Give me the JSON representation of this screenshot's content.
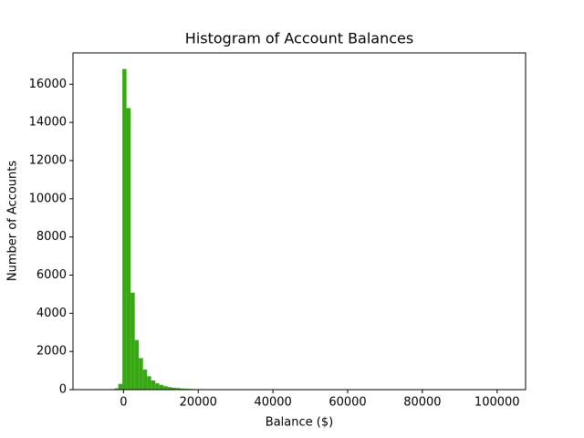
{
  "chart_data": {
    "type": "histogram",
    "title": "Histogram of Account Balances",
    "x_label": "Balance ($)",
    "y_label": "Number of Accounts",
    "color": "#38a714",
    "bins": [
      -8019,
      -6918,
      -5816,
      -4715,
      -3613,
      -2512,
      -1410,
      -309,
      793,
      1894,
      2996,
      4097,
      5199,
      6300,
      7401,
      8503,
      9604,
      10706,
      11807,
      12909,
      14010,
      15112,
      16213,
      17315,
      18416,
      19518,
      20619,
      21720,
      22822,
      23923,
      25025,
      26126,
      27228,
      28329,
      29431,
      30532,
      31634,
      32735,
      33837,
      34938,
      36039,
      37141,
      38242,
      39344,
      40445,
      41547,
      42648,
      43750,
      44851,
      45953,
      47054,
      48156,
      49257,
      50359,
      51460,
      52561,
      53663,
      54764,
      55866,
      56967,
      58069,
      59170,
      60272,
      61373,
      62475,
      63576,
      64678,
      65779,
      66880,
      67982,
      69083,
      70185,
      71286,
      72388,
      73489,
      74591,
      75692,
      76794,
      77895,
      78997,
      80098,
      81199,
      82301,
      83402,
      84504,
      85605,
      86707,
      87808,
      88910,
      90011,
      91113,
      92214,
      93316,
      94417,
      95519,
      96620,
      97722,
      98823,
      99924,
      101026,
      102127
    ],
    "counts": [
      1,
      2,
      5,
      15,
      20,
      60,
      300,
      16800,
      14750,
      5080,
      2600,
      1650,
      1050,
      700,
      480,
      330,
      250,
      180,
      130,
      100,
      80,
      60,
      50,
      40,
      30,
      25,
      20,
      18,
      15,
      12,
      10,
      8,
      7,
      6,
      5,
      5,
      4,
      4,
      3,
      3,
      3,
      2,
      2,
      2,
      2,
      1,
      1,
      1,
      1,
      1,
      1,
      1,
      1,
      1,
      1,
      1,
      1,
      1,
      1,
      1,
      1,
      1,
      1,
      1,
      1,
      1,
      1,
      1,
      1,
      1,
      1,
      1,
      1,
      1,
      1,
      1,
      1,
      1,
      1,
      1,
      1,
      1,
      1,
      1,
      1,
      1,
      1,
      1,
      1,
      1,
      1,
      1,
      1,
      1,
      1,
      1,
      1,
      1,
      1,
      1
    ],
    "xlim": [
      -13526,
      107634
    ],
    "ylim": [
      0,
      17640
    ],
    "xticks": [
      0,
      20000,
      40000,
      60000,
      80000,
      100000
    ],
    "yticks": [
      0,
      2000,
      4000,
      6000,
      8000,
      10000,
      12000,
      14000,
      16000
    ]
  }
}
